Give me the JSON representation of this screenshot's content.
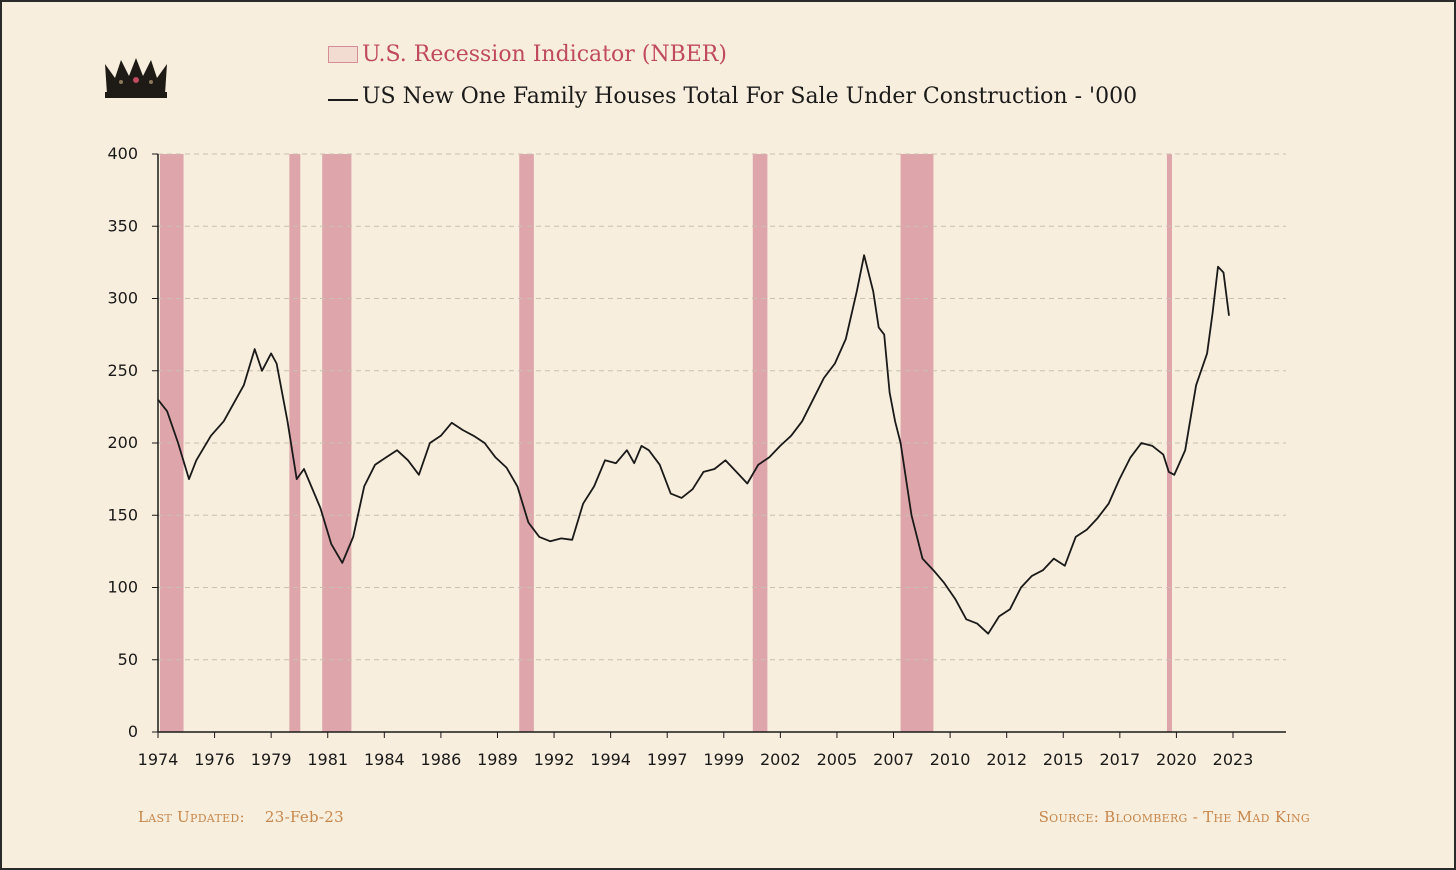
{
  "legend": {
    "recession_label": "U.S. Recession Indicator (NBER)",
    "series_label": "US New One Family Houses Total For Sale Under Construction - '000"
  },
  "footer": {
    "last_updated_label": "Last Updated:",
    "last_updated_date": "23-Feb-23",
    "source": "Source: Bloomberg - The Mad King"
  },
  "colors": {
    "background": "#f7eedd",
    "recession_fill": "#dea6ab",
    "line": "#1a1a1a",
    "grid": "#c9c0b0",
    "footer_text": "#c8864a",
    "legend_recession_text": "#c04a5e"
  },
  "icons": {
    "logo": "crown-icon"
  },
  "chart_data": {
    "type": "line",
    "title": "",
    "xlabel": "",
    "ylabel": "",
    "ylim": [
      0,
      400
    ],
    "xlim": [
      1974.0,
      2023.1
    ],
    "yticks": [
      0,
      50,
      100,
      150,
      200,
      250,
      300,
      350,
      400
    ],
    "xtick_labels": [
      "1974",
      "1976",
      "1979",
      "1981",
      "1984",
      "1986",
      "1989",
      "1992",
      "1994",
      "1997",
      "1999",
      "2002",
      "2005",
      "2007",
      "2010",
      "2012",
      "2015",
      "2017",
      "2020",
      "2023"
    ],
    "grid": "horizontal dashed",
    "legend_position": "top",
    "recessions": [
      {
        "start": "1973-11",
        "end": "1975-03"
      },
      {
        "start": "1980-01",
        "end": "1980-07"
      },
      {
        "start": "1981-07",
        "end": "1982-11"
      },
      {
        "start": "1990-07",
        "end": "1991-03"
      },
      {
        "start": "2001-03",
        "end": "2001-11"
      },
      {
        "start": "2007-12",
        "end": "2009-06"
      },
      {
        "start": "2020-02",
        "end": "2020-04"
      }
    ],
    "series": [
      {
        "name": "US New One Family Houses Total For Sale Under Construction - '000",
        "x": [
          "1974-01",
          "1974-06",
          "1974-12",
          "1975-06",
          "1975-10",
          "1976-06",
          "1977-01",
          "1977-12",
          "1978-06",
          "1978-10",
          "1979-03",
          "1979-06",
          "1979-12",
          "1980-05",
          "1980-09",
          "1981-01",
          "1981-06",
          "1981-12",
          "1982-06",
          "1982-12",
          "1983-06",
          "1983-12",
          "1984-06",
          "1984-12",
          "1985-06",
          "1985-12",
          "1986-06",
          "1986-12",
          "1987-06",
          "1987-12",
          "1988-06",
          "1988-12",
          "1989-06",
          "1989-12",
          "1990-06",
          "1990-12",
          "1991-06",
          "1991-12",
          "1992-06",
          "1992-12",
          "1993-06",
          "1993-12",
          "1994-06",
          "1994-12",
          "1995-06",
          "1995-10",
          "1996-02",
          "1996-06",
          "1996-12",
          "1997-06",
          "1997-12",
          "1998-06",
          "1998-12",
          "1999-06",
          "1999-12",
          "2000-06",
          "2000-12",
          "2001-06",
          "2001-12",
          "2002-06",
          "2002-12",
          "2003-06",
          "2003-12",
          "2004-06",
          "2004-12",
          "2005-06",
          "2005-12",
          "2006-04",
          "2006-09",
          "2006-12",
          "2007-03",
          "2007-06",
          "2007-09",
          "2007-12",
          "2008-06",
          "2008-12",
          "2009-06",
          "2009-12",
          "2010-06",
          "2010-12",
          "2011-06",
          "2011-12",
          "2012-06",
          "2012-12",
          "2013-06",
          "2013-12",
          "2014-06",
          "2014-12",
          "2015-06",
          "2015-12",
          "2016-06",
          "2016-12",
          "2017-06",
          "2017-12",
          "2018-06",
          "2018-12",
          "2019-06",
          "2019-12",
          "2020-03",
          "2020-06",
          "2020-12",
          "2021-06",
          "2021-12",
          "2022-03",
          "2022-06",
          "2022-09",
          "2022-12"
        ],
        "values": [
          230,
          222,
          200,
          175,
          188,
          205,
          215,
          240,
          265,
          250,
          262,
          255,
          215,
          175,
          182,
          170,
          155,
          130,
          117,
          135,
          170,
          185,
          190,
          195,
          188,
          178,
          200,
          205,
          214,
          209,
          205,
          200,
          190,
          183,
          170,
          145,
          135,
          132,
          134,
          133,
          158,
          170,
          188,
          186,
          195,
          186,
          198,
          195,
          185,
          165,
          162,
          168,
          180,
          182,
          188,
          180,
          172,
          185,
          190,
          198,
          205,
          215,
          230,
          245,
          255,
          272,
          305,
          330,
          305,
          280,
          275,
          235,
          215,
          200,
          150,
          120,
          112,
          103,
          92,
          78,
          75,
          68,
          80,
          85,
          100,
          108,
          112,
          120,
          115,
          135,
          140,
          148,
          158,
          175,
          190,
          200,
          198,
          192,
          180,
          178,
          195,
          240,
          262,
          290,
          322,
          318,
          288
        ]
      }
    ]
  }
}
